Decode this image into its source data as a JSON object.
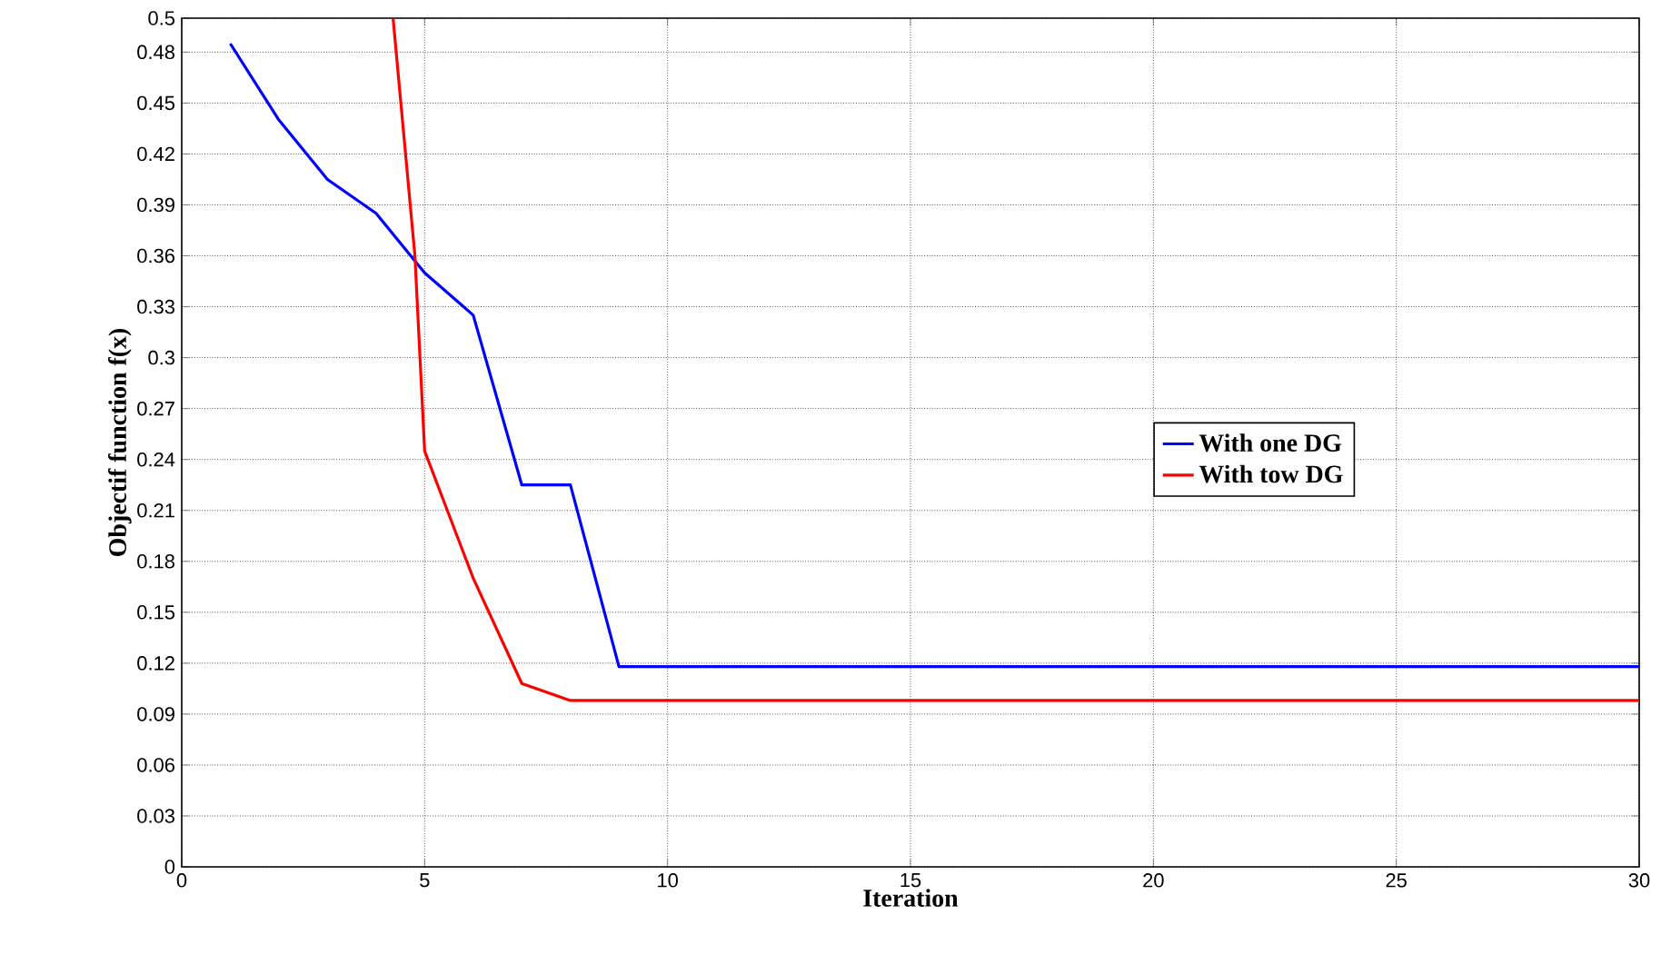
{
  "chart_data": {
    "type": "line",
    "xlabel": "Iteration",
    "ylabel": "Objectif function f(x)",
    "xlim": [
      0,
      30
    ],
    "ylim": [
      0,
      0.5
    ],
    "xticks": [
      0,
      5,
      10,
      15,
      20,
      25,
      30
    ],
    "yticks": [
      0,
      0.03,
      0.06,
      0.09,
      0.12,
      0.15,
      0.18,
      0.21,
      0.24,
      0.27,
      0.3,
      0.33,
      0.36,
      0.39,
      0.42,
      0.45,
      0.48,
      0.5
    ],
    "grid": true,
    "legend": "right",
    "marker": "none",
    "line_style": "solid",
    "series": [
      {
        "name": "With one DG",
        "color": "#0000ff",
        "x": [
          1,
          2,
          3,
          4,
          5,
          6,
          7,
          8,
          9,
          30
        ],
        "values": [
          0.485,
          0.44,
          0.405,
          0.385,
          0.35,
          0.325,
          0.225,
          0.225,
          0.118,
          0.118
        ]
      },
      {
        "name": "With tow DG",
        "color": "#ff0000",
        "x": [
          4.35,
          4.8,
          5,
          6,
          7,
          8,
          30
        ],
        "values": [
          0.5,
          0.36,
          0.245,
          0.17,
          0.108,
          0.098,
          0.098
        ]
      }
    ]
  }
}
